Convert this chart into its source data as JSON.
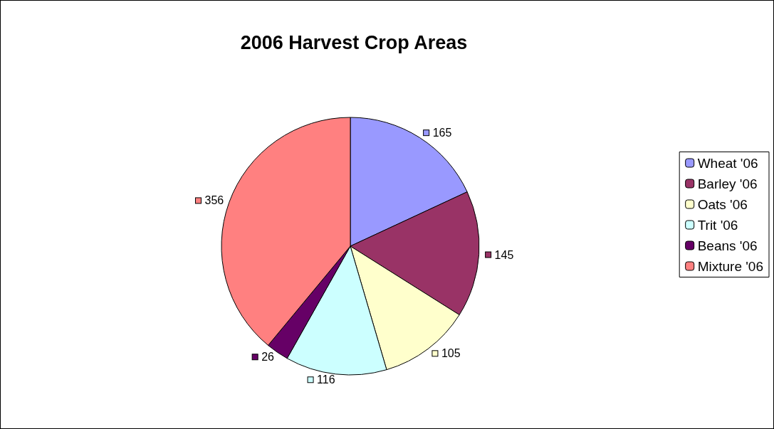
{
  "chart_data": {
    "type": "pie",
    "title": "2006 Harvest Crop Areas",
    "categories": [
      "Wheat '06",
      "Barley '06",
      "Oats '06",
      "Trit '06",
      "Beans '06",
      "Mixture '06"
    ],
    "values": [
      165,
      145,
      105,
      116,
      26,
      356
    ],
    "colors": [
      "#9999ff",
      "#993366",
      "#ffffcc",
      "#ccffff",
      "#660066",
      "#ff8080"
    ],
    "data_labels": true,
    "legend": "right"
  }
}
